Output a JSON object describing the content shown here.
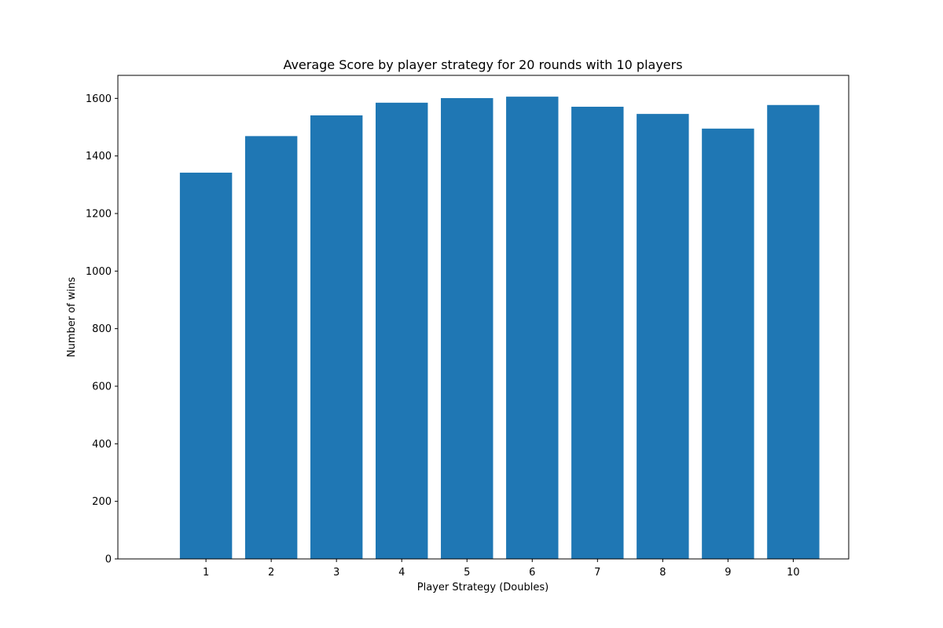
{
  "chart_data": {
    "type": "bar",
    "title": "Average Score by player strategy for 20 rounds with 10 players",
    "xlabel": "Player Strategy (Doubles)",
    "ylabel": "Number of wins",
    "categories": [
      "1",
      "2",
      "3",
      "4",
      "5",
      "6",
      "7",
      "8",
      "9",
      "10"
    ],
    "values": [
      1342,
      1469,
      1541,
      1585,
      1601,
      1606,
      1571,
      1546,
      1495,
      1577
    ],
    "ylim": [
      0,
      1680
    ],
    "yticks": [
      0,
      200,
      400,
      600,
      800,
      1000,
      1200,
      1400,
      1600
    ],
    "grid": false,
    "bar_color": "#1f77b4"
  }
}
